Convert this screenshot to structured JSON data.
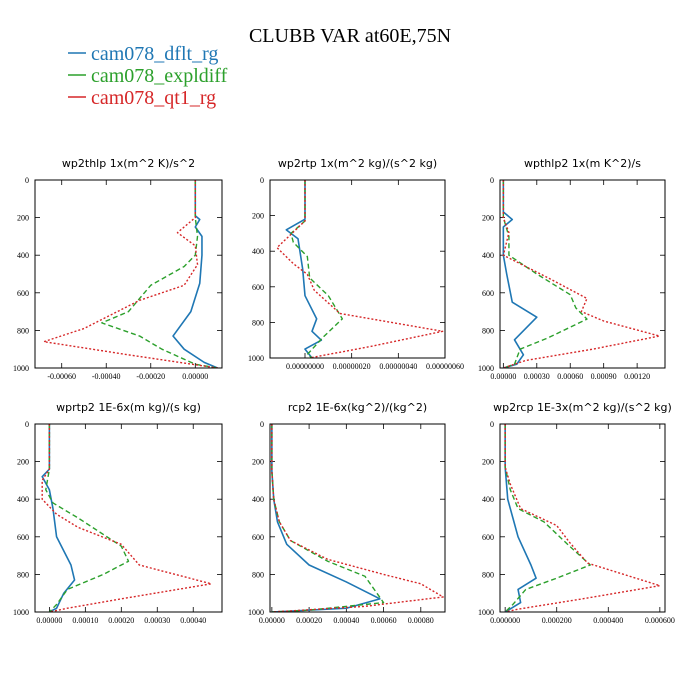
{
  "figure": {
    "title": "CLUBB VAR at60E,75N",
    "legend": [
      {
        "name": "cam078_dflt_rg",
        "color": "#1f77b4",
        "dash": "solid"
      },
      {
        "name": "cam078_expldiff",
        "color": "#2ca02c",
        "dash": "dashed"
      },
      {
        "name": "cam078_qt1_rg",
        "color": "#d62728",
        "dash": "dotted"
      }
    ]
  },
  "chart_data": [
    {
      "type": "line",
      "title": "wp2thlp  1x(m^2 K)/s^2",
      "xlim": [
        -0.00072,
        0.00012
      ],
      "ylim": [
        1000,
        0
      ],
      "xticks": [
        "-0.00060",
        "-0.00040",
        "-0.00020",
        "0.00000"
      ],
      "xtick_values": [
        -0.0006,
        -0.0004,
        -0.0002,
        0.0
      ],
      "yticks": [
        0,
        200,
        400,
        600,
        800,
        1000
      ],
      "series": [
        {
          "name": "cam078_dflt_rg",
          "points": [
            [
              0.0,
              0
            ],
            [
              0.0,
              190
            ],
            [
              2e-05,
              210
            ],
            [
              0.0,
              250
            ],
            [
              3e-05,
              300
            ],
            [
              3e-05,
              400
            ],
            [
              2e-05,
              550
            ],
            [
              -2e-05,
              700
            ],
            [
              -0.0001,
              830
            ],
            [
              -5e-05,
              900
            ],
            [
              4e-05,
              970
            ],
            [
              0.0001,
              1000
            ]
          ]
        },
        {
          "name": "cam078_expldiff",
          "points": [
            [
              0.0,
              0
            ],
            [
              0.0,
              200
            ],
            [
              1e-05,
              300
            ],
            [
              0.0,
              400
            ],
            [
              -5e-05,
              460
            ],
            [
              -0.0002,
              560
            ],
            [
              -0.0003,
              700
            ],
            [
              -0.00042,
              760
            ],
            [
              -0.00025,
              830
            ],
            [
              -0.00015,
              900
            ],
            [
              0.0,
              980
            ],
            [
              0.0001,
              1000
            ]
          ]
        },
        {
          "name": "cam078_qt1_rg",
          "points": [
            [
              0.0,
              0
            ],
            [
              0.0,
              200
            ],
            [
              -8e-05,
              280
            ],
            [
              0.0,
              350
            ],
            [
              1e-05,
              450
            ],
            [
              -5e-05,
              560
            ],
            [
              -0.00025,
              640
            ],
            [
              -0.00035,
              700
            ],
            [
              -0.0005,
              790
            ],
            [
              -0.00068,
              860
            ],
            [
              -0.0003,
              930
            ],
            [
              0.0001,
              1000
            ]
          ]
        }
      ]
    },
    {
      "type": "line",
      "title": "wp2rtp  1x(m^2 kg)/(s^2 kg)",
      "xlim": [
        -1.5e-07,
        6e-07
      ],
      "ylim": [
        1000,
        0
      ],
      "xticks": [
        "0.00000000",
        "0.00000020",
        "0.00000040",
        "0.00000060"
      ],
      "xtick_values": [
        0.0,
        2e-07,
        4e-07,
        6e-07
      ],
      "yticks": [
        0,
        200,
        400,
        600,
        800,
        1000
      ],
      "series": [
        {
          "name": "cam078_dflt_rg",
          "points": [
            [
              0.0,
              0
            ],
            [
              0.0,
              220
            ],
            [
              -8e-08,
              280
            ],
            [
              -3e-08,
              330
            ],
            [
              -1e-08,
              500
            ],
            [
              0.0,
              650
            ],
            [
              5e-08,
              780
            ],
            [
              3e-08,
              850
            ],
            [
              7e-08,
              900
            ],
            [
              0.0,
              950
            ],
            [
              3e-08,
              1000
            ]
          ]
        },
        {
          "name": "cam078_expldiff",
          "points": [
            [
              0.0,
              0
            ],
            [
              0.0,
              230
            ],
            [
              -6e-08,
              300
            ],
            [
              -5e-08,
              350
            ],
            [
              1e-08,
              430
            ],
            [
              2e-08,
              550
            ],
            [
              1e-07,
              650
            ],
            [
              1.6e-07,
              780
            ],
            [
              8e-08,
              880
            ],
            [
              1e-08,
              980
            ],
            [
              3e-08,
              1000
            ]
          ]
        },
        {
          "name": "cam078_qt1_rg",
          "points": [
            [
              0.0,
              0
            ],
            [
              0.0,
              230
            ],
            [
              -1.2e-07,
              380
            ],
            [
              -5e-08,
              470
            ],
            [
              1e-08,
              530
            ],
            [
              4e-08,
              620
            ],
            [
              1.5e-07,
              750
            ],
            [
              5.9e-07,
              850
            ],
            [
              3e-07,
              930
            ],
            [
              1e-07,
              980
            ],
            [
              2e-08,
              1000
            ]
          ]
        }
      ]
    },
    {
      "type": "line",
      "title": "wpthlp2  1x(m K^2)/s",
      "xlim": [
        -3e-05,
        0.00145
      ],
      "ylim": [
        1000,
        0
      ],
      "xticks": [
        "0.00000",
        "0.00030",
        "0.00060",
        "0.00090",
        "0.00120"
      ],
      "xtick_values": [
        0.0,
        0.0003,
        0.0006,
        0.0009,
        0.0012
      ],
      "yticks": [
        0,
        200,
        400,
        600,
        800,
        1000
      ],
      "series": [
        {
          "name": "cam078_dflt_rg",
          "points": [
            [
              0.0,
              0
            ],
            [
              0.0,
              170
            ],
            [
              8e-05,
              210
            ],
            [
              0.0,
              250
            ],
            [
              0.0,
              400
            ],
            [
              3e-05,
              500
            ],
            [
              8e-05,
              650
            ],
            [
              0.0003,
              730
            ],
            [
              0.0001,
              850
            ],
            [
              0.00018,
              930
            ],
            [
              0.00012,
              980
            ],
            [
              0.0,
              1000
            ]
          ]
        },
        {
          "name": "cam078_expldiff",
          "points": [
            [
              0.0,
              0
            ],
            [
              0.0,
              200
            ],
            [
              5e-05,
              300
            ],
            [
              5e-05,
              400
            ],
            [
              0.0003,
              500
            ],
            [
              0.0006,
              610
            ],
            [
              0.00065,
              680
            ],
            [
              0.00075,
              740
            ],
            [
              0.0004,
              840
            ],
            [
              0.00015,
              900
            ],
            [
              0.0001,
              980
            ],
            [
              0.0,
              1000
            ]
          ]
        },
        {
          "name": "cam078_qt1_rg",
          "points": [
            [
              0.0,
              0
            ],
            [
              0.0,
              200
            ],
            [
              5e-05,
              280
            ],
            [
              0.0,
              400
            ],
            [
              0.0004,
              520
            ],
            [
              0.00075,
              630
            ],
            [
              0.0007,
              700
            ],
            [
              0.0009,
              750
            ],
            [
              0.0014,
              830
            ],
            [
              0.0008,
              900
            ],
            [
              0.0002,
              960
            ],
            [
              0.0,
              1000
            ]
          ]
        }
      ]
    },
    {
      "type": "line",
      "title": "wprtp2  1E-6x(m kg)/(s kg)",
      "xlim": [
        -4e-05,
        0.00048
      ],
      "ylim": [
        1000,
        0
      ],
      "xticks": [
        "0.00000",
        "0.00010",
        "0.00020",
        "0.00030",
        "0.00040"
      ],
      "xtick_values": [
        0.0,
        0.0001,
        0.0002,
        0.0003,
        0.0004
      ],
      "yticks": [
        0,
        200,
        400,
        600,
        800,
        1000
      ],
      "series": [
        {
          "name": "cam078_dflt_rg",
          "points": [
            [
              0.0,
              0
            ],
            [
              0.0,
              240
            ],
            [
              -2e-05,
              280
            ],
            [
              0.0,
              350
            ],
            [
              1e-05,
              450
            ],
            [
              2e-05,
              600
            ],
            [
              6e-05,
              750
            ],
            [
              7e-05,
              830
            ],
            [
              4e-05,
              900
            ],
            [
              2e-05,
              980
            ],
            [
              0.0,
              1000
            ]
          ]
        },
        {
          "name": "cam078_expldiff",
          "points": [
            [
              0.0,
              0
            ],
            [
              0.0,
              240
            ],
            [
              -1e-05,
              350
            ],
            [
              1e-05,
              420
            ],
            [
              8e-05,
              500
            ],
            [
              0.0002,
              650
            ],
            [
              0.00022,
              730
            ],
            [
              0.00015,
              800
            ],
            [
              5e-05,
              880
            ],
            [
              2e-05,
              960
            ],
            [
              0.0,
              1000
            ]
          ]
        },
        {
          "name": "cam078_qt1_rg",
          "points": [
            [
              0.0,
              0
            ],
            [
              0.0,
              240
            ],
            [
              -2e-05,
              300
            ],
            [
              -2e-05,
              400
            ],
            [
              2e-05,
              480
            ],
            [
              8e-05,
              550
            ],
            [
              0.0002,
              640
            ],
            [
              0.00025,
              750
            ],
            [
              0.00045,
              850
            ],
            [
              0.0002,
              930
            ],
            [
              5e-05,
              980
            ],
            [
              0.0,
              1000
            ]
          ]
        }
      ]
    },
    {
      "type": "line",
      "title": "rcp2  1E-6x(kg^2)/(kg^2)",
      "xlim": [
        -1e-05,
        0.00093
      ],
      "ylim": [
        1000,
        0
      ],
      "xticks": [
        "0.00000",
        "0.00020",
        "0.00040",
        "0.00060",
        "0.00080"
      ],
      "xtick_values": [
        0.0,
        0.0002,
        0.0004,
        0.0006,
        0.0008
      ],
      "yticks": [
        0,
        200,
        400,
        600,
        800,
        1000
      ],
      "series": [
        {
          "name": "cam078_dflt_rg",
          "points": [
            [
              0.0,
              0
            ],
            [
              0.0,
              250
            ],
            [
              1e-05,
              400
            ],
            [
              3e-05,
              520
            ],
            [
              8e-05,
              640
            ],
            [
              0.0002,
              750
            ],
            [
              0.0004,
              840
            ],
            [
              0.00058,
              930
            ],
            [
              0.0004,
              980
            ],
            [
              0.0,
              1000
            ]
          ]
        },
        {
          "name": "cam078_expldiff",
          "points": [
            [
              0.0,
              0
            ],
            [
              0.0,
              250
            ],
            [
              1e-05,
              400
            ],
            [
              4e-05,
              520
            ],
            [
              0.0001,
              620
            ],
            [
              0.0003,
              730
            ],
            [
              0.0005,
              810
            ],
            [
              0.0006,
              950
            ],
            [
              0.0002,
              990
            ],
            [
              0.0,
              1000
            ]
          ]
        },
        {
          "name": "cam078_qt1_rg",
          "points": [
            [
              0.0,
              0
            ],
            [
              0.0,
              250
            ],
            [
              1e-05,
              400
            ],
            [
              4e-05,
              520
            ],
            [
              0.0001,
              620
            ],
            [
              0.0003,
              720
            ],
            [
              0.0006,
              800
            ],
            [
              0.0008,
              850
            ],
            [
              0.00092,
              920
            ],
            [
              0.0005,
              970
            ],
            [
              0.0,
              1000
            ]
          ]
        }
      ]
    },
    {
      "type": "line",
      "title": "wp2rcp  1E-3x(m^2 kg)/(s^2 kg)",
      "xlim": [
        -2e-05,
        0.00062
      ],
      "ylim": [
        1000,
        0
      ],
      "xticks": [
        "0.000000",
        "0.000200",
        "0.000400",
        "0.000600"
      ],
      "xtick_values": [
        0.0,
        0.0002,
        0.0004,
        0.0006
      ],
      "yticks": [
        0,
        200,
        400,
        600,
        800,
        1000
      ],
      "series": [
        {
          "name": "cam078_dflt_rg",
          "points": [
            [
              0.0,
              0
            ],
            [
              0.0,
              230
            ],
            [
              1e-05,
              400
            ],
            [
              3e-05,
              500
            ],
            [
              5e-05,
              600
            ],
            [
              0.0001,
              750
            ],
            [
              0.00012,
              820
            ],
            [
              5e-05,
              880
            ],
            [
              6e-05,
              950
            ],
            [
              0.0,
              1000
            ]
          ]
        },
        {
          "name": "cam078_expldiff",
          "points": [
            [
              0.0,
              0
            ],
            [
              0.0,
              230
            ],
            [
              2e-05,
              350
            ],
            [
              5e-05,
              450
            ],
            [
              0.00015,
              520
            ],
            [
              0.00025,
              650
            ],
            [
              0.00033,
              750
            ],
            [
              0.0002,
              820
            ],
            [
              8e-05,
              880
            ],
            [
              3e-05,
              960
            ],
            [
              0.0,
              1000
            ]
          ]
        },
        {
          "name": "cam078_qt1_rg",
          "points": [
            [
              0.0,
              0
            ],
            [
              0.0,
              230
            ],
            [
              2e-05,
              320
            ],
            [
              6e-05,
              450
            ],
            [
              0.0002,
              540
            ],
            [
              0.00025,
              630
            ],
            [
              0.00032,
              740
            ],
            [
              0.0006,
              860
            ],
            [
              0.0003,
              930
            ],
            [
              5e-05,
              985
            ],
            [
              0.0,
              1000
            ]
          ]
        }
      ]
    }
  ]
}
